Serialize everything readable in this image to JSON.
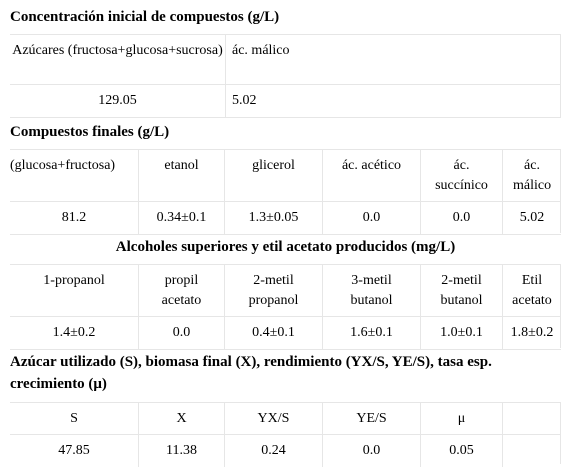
{
  "sections": {
    "initial": {
      "title": "Concentración inicial de compuestos (g/L)",
      "headers": [
        "Azúcares (fructosa+glucosa+sucrosa)",
        "ác. málico"
      ],
      "values": [
        "129.05",
        "5.02"
      ]
    },
    "final": {
      "title": "Compuestos finales (g/L)",
      "headers": [
        "(glucosa+fructosa)",
        "etanol",
        "glicerol",
        "ác. acético",
        "ác. succínico",
        "ác. málico"
      ],
      "values": [
        "81.2",
        "0.34±0.1",
        "1.3±0.05",
        "0.0",
        "0.0",
        "5.02"
      ]
    },
    "alcohols": {
      "title": "Alcoholes superiores y etil acetato producidos (mg/L)",
      "headers": [
        "1-propanol",
        "propil acetato",
        "2-metil propanol",
        "3-metil butanol",
        "2-metil butanol",
        "Etil acetato"
      ],
      "values": [
        "1.4±0.2",
        "0.0",
        "0.4±0.1",
        "1.6±0.1",
        "1.0±0.1",
        "1.8±0.2"
      ]
    },
    "yield": {
      "title_line1": "Azúcar utilizado (S), biomasa final (X), rendimiento (YX/S, YE/S), tasa esp.",
      "title_line2": "crecimiento (μ)",
      "headers": [
        "S",
        "X",
        "YX/S",
        "YE/S",
        "μ",
        ""
      ],
      "values": [
        "47.85",
        "11.38",
        "0.24",
        "0.0",
        "0.05",
        ""
      ]
    }
  }
}
